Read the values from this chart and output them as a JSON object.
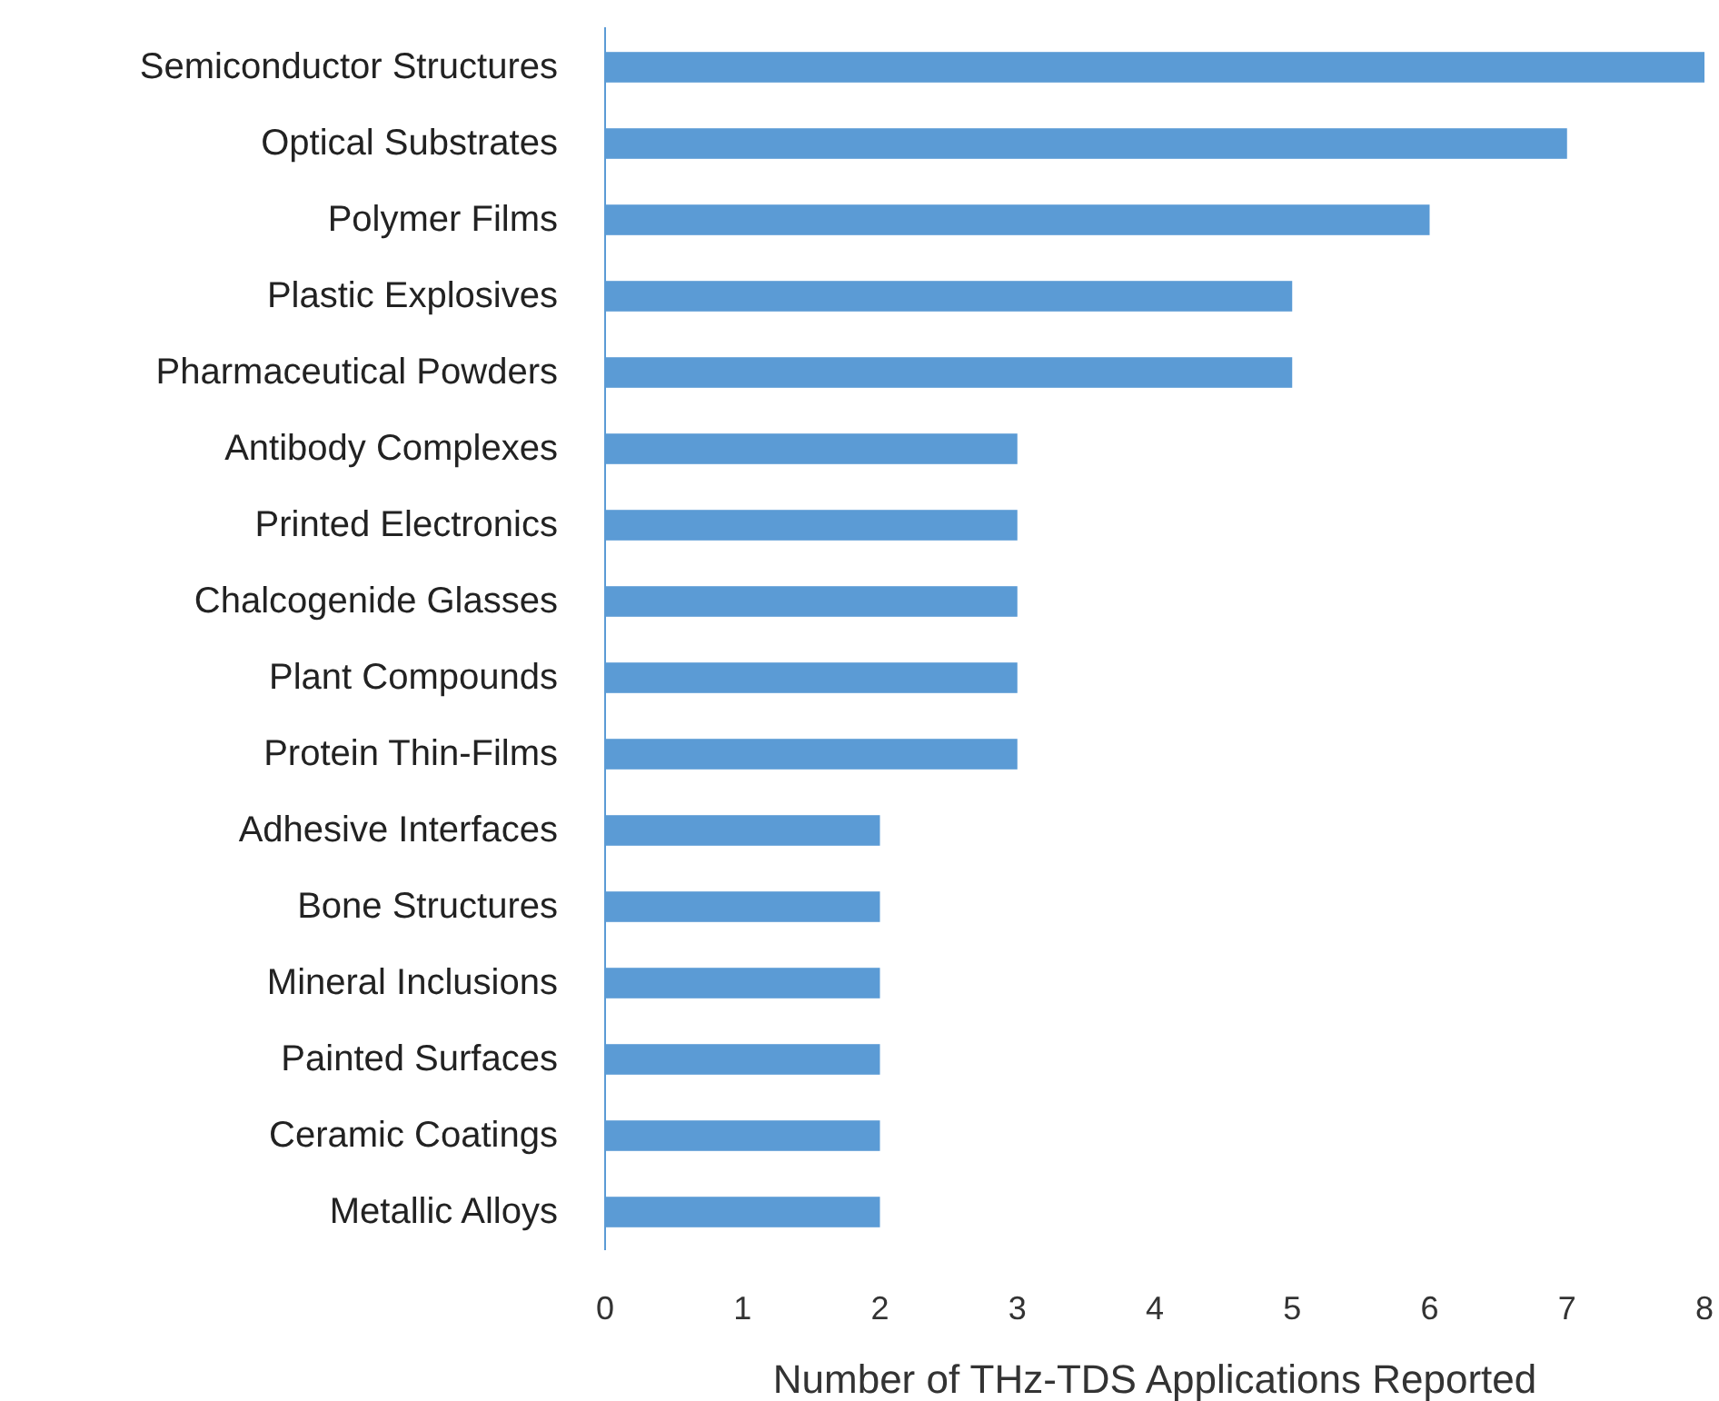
{
  "chart_data": {
    "type": "bar",
    "orientation": "horizontal",
    "xlabel": "Number of THz-TDS Applications Reported",
    "categories": [
      "Semiconductor Structures",
      "Optical Substrates",
      "Polymer Films",
      "Plastic Explosives",
      "Pharmaceutical Powders",
      "Antibody Complexes",
      "Printed Electronics",
      "Chalcogenide Glasses",
      "Plant Compounds",
      "Protein Thin-Films",
      "Adhesive Interfaces",
      "Bone Structures",
      "Mineral Inclusions",
      "Painted Surfaces",
      "Ceramic Coatings",
      "Metallic Alloys"
    ],
    "values": [
      8,
      7,
      6,
      5,
      5,
      3,
      3,
      3,
      3,
      3,
      2,
      2,
      2,
      2,
      2,
      2
    ],
    "color": "#5b9bd5",
    "xlim": [
      0,
      8
    ],
    "xticks": [
      0,
      1,
      2,
      3,
      4,
      5,
      6,
      7,
      8
    ]
  }
}
